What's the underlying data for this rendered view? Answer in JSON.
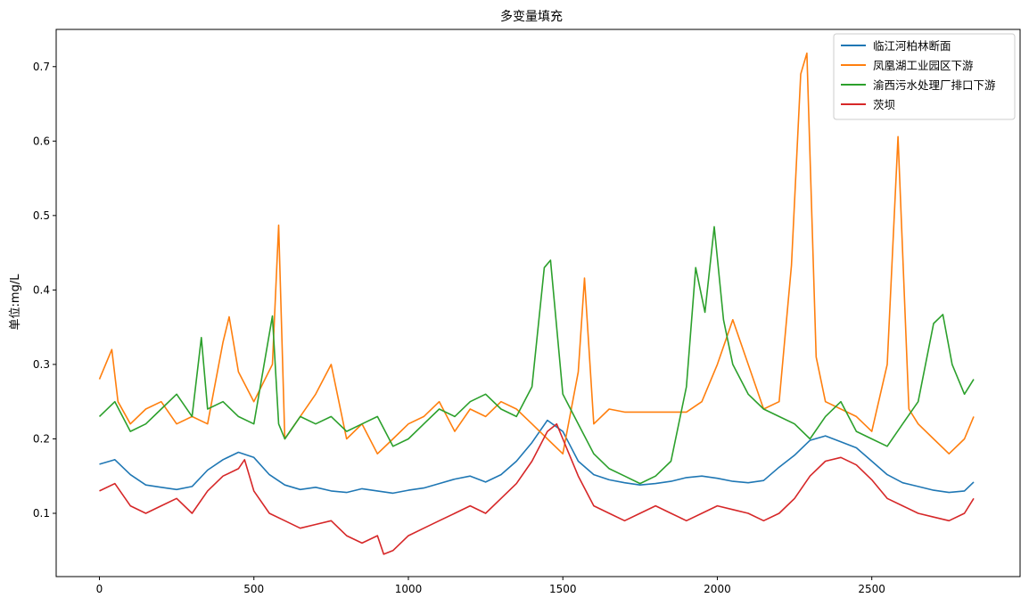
{
  "chart_data": {
    "type": "line",
    "title": "多变量填充",
    "xlabel": "",
    "ylabel": "单位:mg/L",
    "xlim": [
      -140,
      2980
    ],
    "ylim": [
      0.015,
      0.75
    ],
    "x_ticks": [
      0,
      500,
      1000,
      1500,
      2000,
      2500
    ],
    "y_ticks": [
      0.1,
      0.2,
      0.3,
      0.4,
      0.5,
      0.6,
      0.7
    ],
    "grid": false,
    "legend_position": "top-right",
    "series": [
      {
        "name": "临江河柏林断面",
        "color": "#1f77b4",
        "x": [
          0,
          50,
          100,
          150,
          200,
          250,
          300,
          350,
          400,
          450,
          500,
          550,
          600,
          650,
          700,
          750,
          800,
          850,
          900,
          950,
          1000,
          1050,
          1100,
          1150,
          1200,
          1250,
          1300,
          1350,
          1400,
          1450,
          1500,
          1550,
          1600,
          1650,
          1700,
          1750,
          1800,
          1850,
          1900,
          1950,
          2000,
          2050,
          2100,
          2150,
          2200,
          2250,
          2300,
          2350,
          2400,
          2450,
          2500,
          2550,
          2600,
          2650,
          2700,
          2750,
          2800,
          2830
        ],
        "values": [
          0.166,
          0.172,
          0.152,
          0.138,
          0.135,
          0.132,
          0.136,
          0.158,
          0.172,
          0.182,
          0.175,
          0.152,
          0.138,
          0.132,
          0.135,
          0.13,
          0.128,
          0.133,
          0.13,
          0.127,
          0.131,
          0.134,
          0.14,
          0.146,
          0.15,
          0.142,
          0.152,
          0.17,
          0.195,
          0.225,
          0.21,
          0.17,
          0.152,
          0.145,
          0.141,
          0.138,
          0.14,
          0.143,
          0.148,
          0.15,
          0.147,
          0.143,
          0.141,
          0.144,
          0.162,
          0.178,
          0.198,
          0.204,
          0.196,
          0.188,
          0.17,
          0.152,
          0.141,
          0.136,
          0.131,
          0.128,
          0.13,
          0.142
        ]
      },
      {
        "name": "凤凰湖工业园区下游",
        "color": "#ff7f0e",
        "x": [
          0,
          40,
          60,
          100,
          150,
          200,
          250,
          300,
          350,
          400,
          420,
          450,
          500,
          560,
          580,
          600,
          650,
          700,
          750,
          800,
          850,
          900,
          950,
          1000,
          1050,
          1100,
          1150,
          1200,
          1250,
          1300,
          1350,
          1400,
          1450,
          1500,
          1550,
          1570,
          1600,
          1650,
          1700,
          1750,
          1800,
          1850,
          1900,
          1950,
          2000,
          2050,
          2100,
          2150,
          2200,
          2240,
          2270,
          2290,
          2320,
          2350,
          2400,
          2450,
          2500,
          2550,
          2585,
          2620,
          2650,
          2700,
          2750,
          2800,
          2830
        ],
        "values": [
          0.28,
          0.32,
          0.25,
          0.22,
          0.24,
          0.25,
          0.22,
          0.23,
          0.22,
          0.33,
          0.364,
          0.29,
          0.25,
          0.3,
          0.487,
          0.2,
          0.23,
          0.26,
          0.3,
          0.2,
          0.22,
          0.18,
          0.2,
          0.22,
          0.23,
          0.25,
          0.21,
          0.24,
          0.23,
          0.25,
          0.24,
          0.22,
          0.2,
          0.18,
          0.29,
          0.416,
          0.22,
          0.24,
          0.236,
          0.236,
          0.236,
          0.236,
          0.236,
          0.25,
          0.3,
          0.36,
          0.3,
          0.24,
          0.25,
          0.433,
          0.69,
          0.718,
          0.31,
          0.25,
          0.24,
          0.23,
          0.21,
          0.3,
          0.606,
          0.24,
          0.22,
          0.2,
          0.18,
          0.2,
          0.23
        ]
      },
      {
        "name": "渝西污水处理厂排口下游",
        "color": "#2ca02c",
        "x": [
          0,
          50,
          100,
          150,
          200,
          250,
          300,
          330,
          350,
          400,
          450,
          500,
          560,
          580,
          600,
          650,
          700,
          750,
          800,
          850,
          900,
          950,
          1000,
          1050,
          1100,
          1150,
          1200,
          1250,
          1300,
          1350,
          1400,
          1440,
          1460,
          1500,
          1550,
          1600,
          1650,
          1700,
          1750,
          1800,
          1850,
          1900,
          1930,
          1960,
          1990,
          2020,
          2050,
          2100,
          2150,
          2200,
          2250,
          2300,
          2350,
          2400,
          2450,
          2500,
          2550,
          2600,
          2650,
          2700,
          2730,
          2760,
          2800,
          2830
        ],
        "values": [
          0.23,
          0.25,
          0.21,
          0.22,
          0.24,
          0.26,
          0.23,
          0.336,
          0.24,
          0.25,
          0.23,
          0.22,
          0.365,
          0.22,
          0.2,
          0.23,
          0.22,
          0.23,
          0.21,
          0.22,
          0.23,
          0.19,
          0.2,
          0.22,
          0.24,
          0.23,
          0.25,
          0.26,
          0.24,
          0.23,
          0.27,
          0.43,
          0.44,
          0.26,
          0.22,
          0.18,
          0.16,
          0.15,
          0.14,
          0.15,
          0.17,
          0.27,
          0.43,
          0.37,
          0.485,
          0.36,
          0.3,
          0.26,
          0.24,
          0.23,
          0.22,
          0.2,
          0.23,
          0.25,
          0.21,
          0.2,
          0.19,
          0.22,
          0.25,
          0.355,
          0.367,
          0.3,
          0.26,
          0.28
        ]
      },
      {
        "name": "茨坝",
        "color": "#d62728",
        "x": [
          0,
          50,
          100,
          150,
          200,
          250,
          300,
          350,
          400,
          450,
          470,
          500,
          550,
          600,
          650,
          700,
          750,
          800,
          850,
          900,
          920,
          950,
          1000,
          1050,
          1100,
          1150,
          1200,
          1250,
          1300,
          1350,
          1400,
          1450,
          1480,
          1500,
          1550,
          1600,
          1650,
          1700,
          1750,
          1800,
          1850,
          1900,
          1950,
          2000,
          2050,
          2100,
          2150,
          2200,
          2250,
          2300,
          2350,
          2400,
          2450,
          2500,
          2550,
          2600,
          2650,
          2700,
          2750,
          2800,
          2830
        ],
        "values": [
          0.13,
          0.14,
          0.11,
          0.1,
          0.11,
          0.12,
          0.1,
          0.13,
          0.15,
          0.16,
          0.172,
          0.13,
          0.1,
          0.09,
          0.08,
          0.085,
          0.09,
          0.07,
          0.06,
          0.07,
          0.045,
          0.05,
          0.07,
          0.08,
          0.09,
          0.1,
          0.11,
          0.1,
          0.12,
          0.14,
          0.17,
          0.21,
          0.22,
          0.2,
          0.15,
          0.11,
          0.1,
          0.09,
          0.1,
          0.11,
          0.1,
          0.09,
          0.1,
          0.11,
          0.105,
          0.1,
          0.09,
          0.1,
          0.12,
          0.15,
          0.17,
          0.175,
          0.165,
          0.145,
          0.12,
          0.11,
          0.1,
          0.095,
          0.09,
          0.1,
          0.12
        ]
      }
    ]
  }
}
